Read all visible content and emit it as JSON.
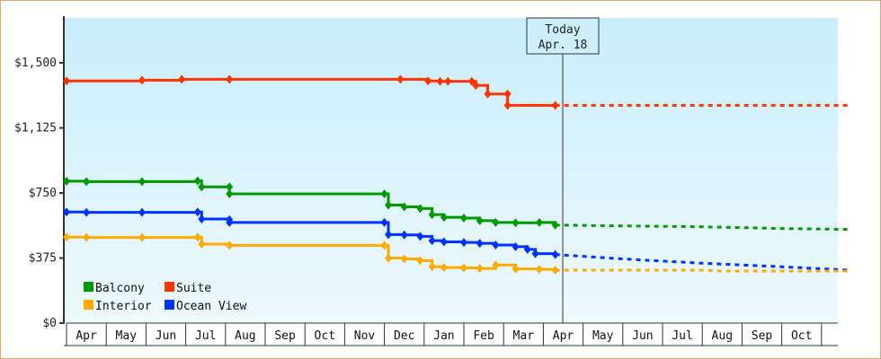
{
  "chart_data": {
    "type": "line",
    "title": "",
    "xlabel": "",
    "ylabel": "",
    "ylim": [
      0,
      1750
    ],
    "y_ticks": [
      "$0",
      "$375",
      "$750",
      "$1,125",
      "$1,500"
    ],
    "y_tick_values": [
      0,
      375,
      750,
      1125,
      1500
    ],
    "x_ticks": [
      "Apr",
      "May",
      "Jun",
      "Jul",
      "Aug",
      "Sep",
      "Oct",
      "Nov",
      "Dec",
      "Jan",
      "Feb",
      "Mar",
      "Apr",
      "May",
      "Jun",
      "Jul",
      "Aug",
      "Sep",
      "Oct"
    ],
    "legend": [
      "Balcony",
      "Suite",
      "Interior",
      "Ocean View"
    ],
    "legend_position": "lower-left",
    "grid": false,
    "annotation": {
      "label_line1": "Today",
      "label_line2": "Apr. 18"
    },
    "series": [
      {
        "name": "Suite",
        "color": "#ff3300",
        "observed": [
          [
            0,
            1395
          ],
          [
            1.9,
            1400
          ],
          [
            2.9,
            1405
          ],
          [
            4.1,
            1405
          ],
          [
            8.4,
            1405
          ],
          [
            9.1,
            1395
          ],
          [
            9.4,
            1393
          ],
          [
            9.6,
            1393
          ],
          [
            10.2,
            1393
          ],
          [
            10.3,
            1370
          ],
          [
            10.6,
            1320
          ],
          [
            11.1,
            1320
          ],
          [
            11.1,
            1255
          ],
          [
            12.3,
            1255
          ]
        ],
        "forecast": [
          [
            12.3,
            1255
          ],
          [
            19.7,
            1255
          ]
        ]
      },
      {
        "name": "Balcony",
        "color": "#009900",
        "observed": [
          [
            0,
            818
          ],
          [
            0.5,
            815
          ],
          [
            1.9,
            815
          ],
          [
            3.3,
            820
          ],
          [
            3.4,
            785
          ],
          [
            4.1,
            785
          ],
          [
            4.1,
            745
          ],
          [
            8.0,
            745
          ],
          [
            8.1,
            680
          ],
          [
            8.5,
            670
          ],
          [
            8.9,
            660
          ],
          [
            9.2,
            625
          ],
          [
            9.5,
            610
          ],
          [
            10.0,
            605
          ],
          [
            10.4,
            590
          ],
          [
            10.8,
            580
          ],
          [
            11.3,
            578
          ],
          [
            11.9,
            580
          ],
          [
            12.3,
            565
          ]
        ],
        "forecast": [
          [
            12.3,
            565
          ],
          [
            14.0,
            560
          ],
          [
            16.0,
            555
          ],
          [
            18.0,
            545
          ],
          [
            19.7,
            540
          ]
        ]
      },
      {
        "name": "Ocean View",
        "color": "#0033ff",
        "observed": [
          [
            0,
            640
          ],
          [
            0.5,
            638
          ],
          [
            1.9,
            638
          ],
          [
            3.3,
            640
          ],
          [
            3.4,
            600
          ],
          [
            4.1,
            596
          ],
          [
            4.1,
            580
          ],
          [
            8.0,
            580
          ],
          [
            8.1,
            510
          ],
          [
            8.5,
            508
          ],
          [
            8.9,
            500
          ],
          [
            9.2,
            475
          ],
          [
            9.5,
            468
          ],
          [
            10.0,
            465
          ],
          [
            10.4,
            460
          ],
          [
            10.8,
            450
          ],
          [
            11.3,
            440
          ],
          [
            11.6,
            425
          ],
          [
            11.8,
            400
          ],
          [
            12.3,
            395
          ]
        ],
        "forecast": [
          [
            12.3,
            395
          ],
          [
            14.0,
            370
          ],
          [
            16.0,
            345
          ],
          [
            18.0,
            325
          ],
          [
            19.7,
            305
          ]
        ]
      },
      {
        "name": "Interior",
        "color": "#ffaa00",
        "observed": [
          [
            0,
            495
          ],
          [
            0.5,
            493
          ],
          [
            1.9,
            493
          ],
          [
            3.3,
            495
          ],
          [
            3.4,
            455
          ],
          [
            4.1,
            448
          ],
          [
            4.1,
            448
          ],
          [
            8.0,
            448
          ],
          [
            8.1,
            375
          ],
          [
            8.5,
            370
          ],
          [
            8.9,
            360
          ],
          [
            9.2,
            325
          ],
          [
            9.5,
            320
          ],
          [
            10.0,
            318
          ],
          [
            10.4,
            315
          ],
          [
            10.8,
            335
          ],
          [
            11.3,
            312
          ],
          [
            11.9,
            310
          ],
          [
            12.3,
            305
          ]
        ],
        "forecast": [
          [
            12.3,
            305
          ],
          [
            16.0,
            305
          ],
          [
            16.5,
            300
          ],
          [
            19.7,
            300
          ]
        ]
      }
    ]
  },
  "today_label": {
    "line1": "Today",
    "line2": "Apr. 18"
  },
  "legend": {
    "items": [
      {
        "label": "Balcony",
        "color": "#009900"
      },
      {
        "label": "Suite",
        "color": "#ff3300"
      },
      {
        "label": "Interior",
        "color": "#ffaa00"
      },
      {
        "label": "Ocean View",
        "color": "#0033ff"
      }
    ]
  }
}
